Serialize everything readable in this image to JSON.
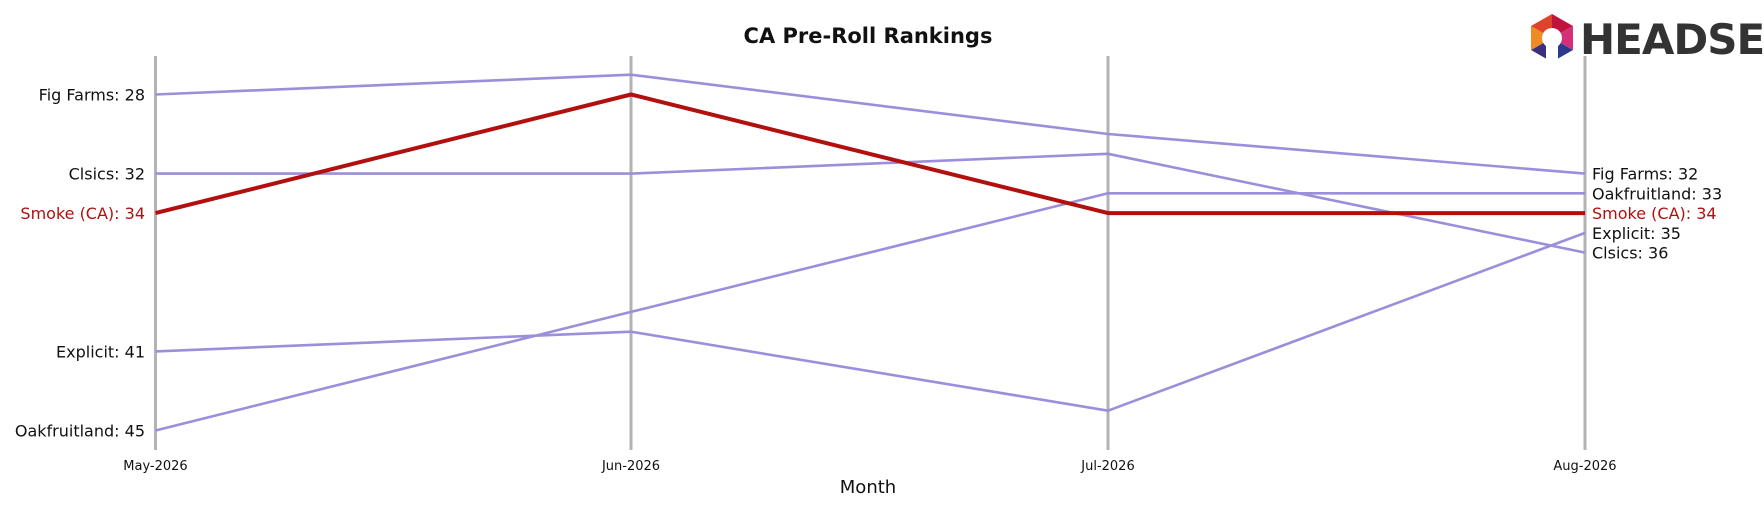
{
  "chart_data": {
    "type": "line",
    "subtype": "bump-ranking",
    "title": "CA Pre-Roll Rankings",
    "xlabel": "Month",
    "ylabel": "",
    "categories": [
      "May-2026",
      "Jun-2026",
      "Jul-2026",
      "Aug-2026"
    ],
    "ylim": [
      46,
      25
    ],
    "y_inverted": true,
    "grid": "vertical-month-lines",
    "series": [
      {
        "name": "Fig Farms",
        "values": [
          28,
          27,
          30,
          32
        ],
        "color": "#9b8fdb",
        "highlight": false
      },
      {
        "name": "Clsics",
        "values": [
          32,
          32,
          31,
          36
        ],
        "color": "#9b8fdb",
        "highlight": false
      },
      {
        "name": "Smoke (CA)",
        "values": [
          34,
          28,
          34,
          34
        ],
        "color": "#b30f0f",
        "highlight": true
      },
      {
        "name": "Explicit",
        "values": [
          41,
          40,
          44,
          35
        ],
        "color": "#9b8fdb",
        "highlight": false
      },
      {
        "name": "Oakfruitland",
        "values": [
          45,
          39,
          33,
          33
        ],
        "color": "#9b8fdb",
        "highlight": false
      }
    ],
    "left_labels": [
      {
        "text": "Fig Farms: 28",
        "value": 28,
        "highlight": false
      },
      {
        "text": "Clsics: 32",
        "value": 32,
        "highlight": false
      },
      {
        "text": "Smoke (CA): 34",
        "value": 34,
        "highlight": true
      },
      {
        "text": "Explicit: 41",
        "value": 41,
        "highlight": false
      },
      {
        "text": "Oakfruitland: 45",
        "value": 45,
        "highlight": false
      }
    ],
    "right_labels": [
      {
        "text": "Fig Farms: 32",
        "value": 32,
        "highlight": false
      },
      {
        "text": "Oakfruitland: 33",
        "value": 33,
        "highlight": false
      },
      {
        "text": "Smoke (CA): 34",
        "value": 34,
        "highlight": true
      },
      {
        "text": "Explicit: 35",
        "value": 35,
        "highlight": false
      },
      {
        "text": "Clsics: 36",
        "value": 36,
        "highlight": false
      }
    ]
  },
  "logo": {
    "text": "HEADSET"
  },
  "colors": {
    "highlight": "#b30f0f",
    "other": "#9b8fdb",
    "gridline": "#b3b3b3",
    "text": "#111111"
  }
}
